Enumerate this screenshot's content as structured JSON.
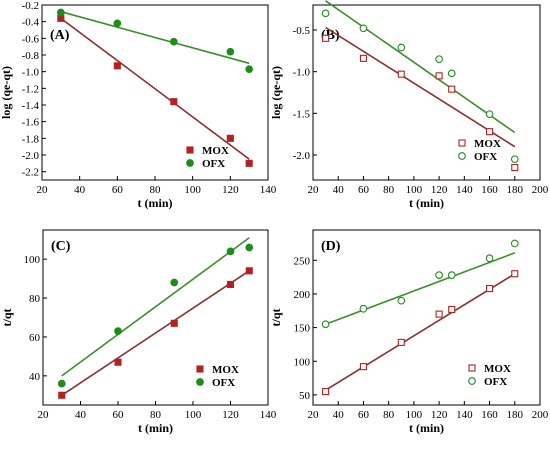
{
  "colors": {
    "mox": "#b22222",
    "ofx": "#1f8b1f",
    "mox_line": "#8b2e2e",
    "ofx_line": "#3a8f2a"
  },
  "chart_data": [
    {
      "type": "scatter",
      "tag": "(A)",
      "marker": "filled",
      "xlabel": "t (min)",
      "ylabel": "log (qe-qt)",
      "xlim": [
        20,
        140
      ],
      "ylim": [
        -2.3,
        -0.2
      ],
      "xticks": [
        20,
        40,
        60,
        80,
        100,
        120,
        140
      ],
      "yticks": [
        -2.2,
        -2.0,
        -1.8,
        -1.6,
        -1.4,
        -1.2,
        -1.0,
        -0.8,
        -0.6,
        -0.4,
        -0.2
      ],
      "ytick_labels": [
        "-2.2",
        "-2.0",
        "-1.8",
        "-1.6",
        "-1.4",
        "-1.2",
        "-1.0",
        "-0.8",
        "-0.6",
        "-0.4",
        "-0.2"
      ],
      "legend_position": "bottom-right",
      "series": [
        {
          "name": "MOX",
          "color_key": "mox",
          "x": [
            30,
            60,
            90,
            120,
            130
          ],
          "y": [
            -0.36,
            -0.93,
            -1.36,
            -1.8,
            -2.1
          ],
          "fit": [
            [
              30,
              -0.36
            ],
            [
              130,
              -2.05
            ]
          ]
        },
        {
          "name": "OFX",
          "color_key": "ofx",
          "x": [
            30,
            60,
            90,
            120,
            130
          ],
          "y": [
            -0.29,
            -0.42,
            -0.64,
            -0.76,
            -0.97
          ],
          "fit": [
            [
              30,
              -0.28
            ],
            [
              130,
              -0.9
            ]
          ]
        }
      ]
    },
    {
      "type": "scatter",
      "tag": "(B)",
      "marker": "open",
      "xlabel": "t (min)",
      "ylabel": "log (qe-qt)",
      "xlim": [
        20,
        200
      ],
      "ylim": [
        -2.3,
        -0.2
      ],
      "xticks": [
        20,
        40,
        60,
        80,
        100,
        120,
        140,
        160,
        180,
        200
      ],
      "yticks": [
        -2.0,
        -1.5,
        -1.0,
        -0.5
      ],
      "ytick_labels": [
        "-2.0",
        "-1.5",
        "-1.0",
        "-0.5"
      ],
      "legend_position": "bottom-right",
      "series": [
        {
          "name": "MOX",
          "color_key": "mox",
          "x": [
            30,
            60,
            90,
            120,
            130,
            160,
            180
          ],
          "y": [
            -0.6,
            -0.84,
            -1.03,
            -1.05,
            -1.21,
            -1.72,
            -2.15
          ],
          "fit": [
            [
              30,
              -0.47
            ],
            [
              180,
              -1.9
            ]
          ]
        },
        {
          "name": "OFX",
          "color_key": "ofx",
          "x": [
            30,
            60,
            90,
            120,
            130,
            160,
            180
          ],
          "y": [
            -0.3,
            -0.48,
            -0.71,
            -0.85,
            -1.02,
            -1.51,
            -2.05
          ],
          "fit": [
            [
              30,
              -0.15
            ],
            [
              180,
              -1.73
            ]
          ]
        }
      ]
    },
    {
      "type": "scatter",
      "tag": "(C)",
      "marker": "filled",
      "xlabel": "t (min)",
      "ylabel": "t/qt",
      "xlim": [
        20,
        140
      ],
      "ylim": [
        25,
        115
      ],
      "xticks": [
        20,
        40,
        60,
        80,
        100,
        120,
        140
      ],
      "yticks": [
        40,
        60,
        80,
        100
      ],
      "ytick_labels": [
        "40",
        "60",
        "80",
        "100"
      ],
      "legend_position": "bottom-right",
      "series": [
        {
          "name": "MOX",
          "color_key": "mox",
          "x": [
            30,
            60,
            90,
            120,
            130
          ],
          "y": [
            30,
            47,
            67,
            87,
            94
          ],
          "fit": [
            [
              30,
              30
            ],
            [
              130,
              94
            ]
          ]
        },
        {
          "name": "OFX",
          "color_key": "ofx",
          "x": [
            30,
            60,
            90,
            120,
            130
          ],
          "y": [
            36,
            63,
            88,
            104,
            106
          ],
          "fit": [
            [
              30,
              40
            ],
            [
              130,
              111
            ]
          ]
        }
      ]
    },
    {
      "type": "scatter",
      "tag": "(D)",
      "marker": "open",
      "xlabel": "t (min)",
      "ylabel": "t/qt",
      "xlim": [
        20,
        200
      ],
      "ylim": [
        35,
        295
      ],
      "xticks": [
        20,
        40,
        60,
        80,
        100,
        120,
        140,
        160,
        180,
        200
      ],
      "yticks": [
        50,
        100,
        150,
        200,
        250
      ],
      "ytick_labels": [
        "50",
        "100",
        "150",
        "200",
        "250"
      ],
      "legend_position": "bottom-right",
      "series": [
        {
          "name": "MOX",
          "color_key": "mox",
          "x": [
            30,
            60,
            90,
            120,
            130,
            160,
            180
          ],
          "y": [
            55,
            92,
            128,
            170,
            177,
            208,
            230
          ],
          "fit": [
            [
              30,
              57
            ],
            [
              180,
              230
            ]
          ]
        },
        {
          "name": "OFX",
          "color_key": "ofx",
          "x": [
            30,
            60,
            90,
            120,
            130,
            160,
            180
          ],
          "y": [
            155,
            178,
            190,
            228,
            228,
            253,
            275
          ],
          "fit": [
            [
              30,
              155
            ],
            [
              180,
              261
            ]
          ]
        }
      ]
    }
  ]
}
